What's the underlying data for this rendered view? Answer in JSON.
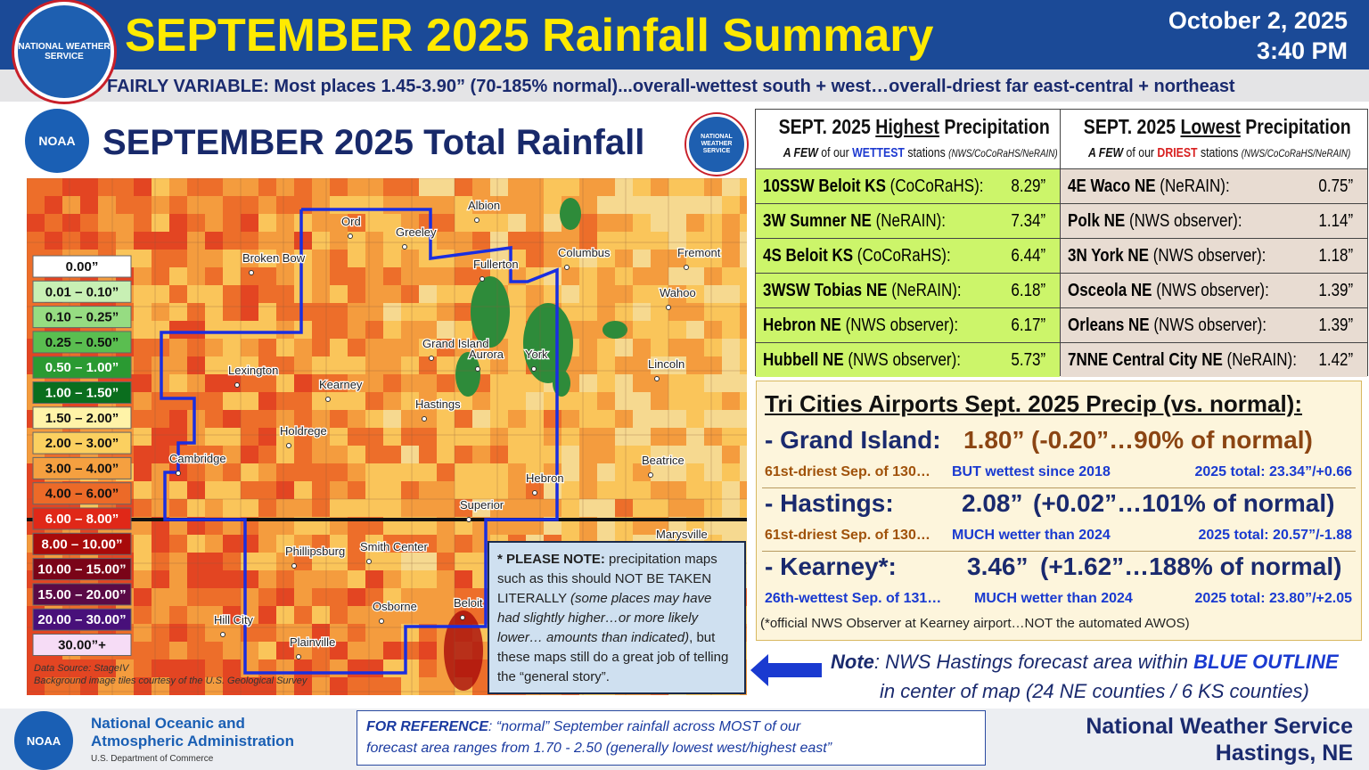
{
  "header": {
    "title": "SEPTEMBER 2025 Rainfall Summary",
    "date": "October 2, 2025",
    "time": "3:40 PM",
    "subtitle": "FAIRLY VARIABLE: Most places 1.45-3.90” (70-185% normal)...overall-wettest south + west…overall-driest far east-central + northeast"
  },
  "logos": {
    "nws": "NATIONAL WEATHER SERVICE",
    "noaa": "NOAA"
  },
  "map": {
    "title": "SEPTEMBER 2025 Total Rainfall",
    "legend": [
      {
        "label": "0.00”",
        "color": "#ffffff"
      },
      {
        "label": "0.01 – 0.10”",
        "color": "#c8f0b4"
      },
      {
        "label": "0.10 – 0.25”",
        "color": "#96dc82"
      },
      {
        "label": "0.25 – 0.50”",
        "color": "#5abe50"
      },
      {
        "label": "0.50 – 1.00”",
        "color": "#2a9a32"
      },
      {
        "label": "1.00 – 1.50”",
        "color": "#0a6e1e"
      },
      {
        "label": "1.50 – 2.00”",
        "color": "#fff3a8"
      },
      {
        "label": "2.00 – 3.00”",
        "color": "#fbd060"
      },
      {
        "label": "3.00 – 4.00”",
        "color": "#f5a040"
      },
      {
        "label": "4.00 – 6.00”",
        "color": "#ec6a28"
      },
      {
        "label": "6.00 – 8.00”",
        "color": "#e02818"
      },
      {
        "label": "8.00 – 10.00”",
        "color": "#a80a0a"
      },
      {
        "label": "10.00 – 15.00”",
        "color": "#7a0418"
      },
      {
        "label": "15.00 – 20.00”",
        "color": "#5a0a46"
      },
      {
        "label": "20.00 – 30.00”",
        "color": "#48107a"
      },
      {
        "label": "30.00”+",
        "color": "#f6dcf6"
      }
    ],
    "cities": [
      "Ord",
      "Greeley",
      "Albion",
      "Broken Bow",
      "Fullerton",
      "Columbus",
      "Fremont",
      "Wahoo",
      "Grand Island",
      "Aurora",
      "York",
      "Lexington",
      "Lincoln",
      "Kearney",
      "Hastings",
      "Holdrege",
      "Cambridge",
      "Beatrice",
      "Hebron",
      "Superior",
      "Marysville",
      "Phillipsburg",
      "Smith Center",
      "Osborne",
      "Beloit",
      "Hill City",
      "Plainville"
    ],
    "source": [
      "Data Source: StageIV",
      "Background image tiles courtesy of the U.S. Geological Survey"
    ]
  },
  "note_box": {
    "lead": "* PLEASE NOTE:",
    "text1": " precipitation maps such as this should NOT BE TAKEN LITERALLY ",
    "italic": "(some places may have had slightly higher…or more likely lower… amounts than indicated)",
    "text2": ", but these maps still do a great job of telling the “general story”."
  },
  "highest": {
    "title": [
      "SEPT. 2025 ",
      "Highest",
      " Precipitation"
    ],
    "subtitle": [
      "A FEW",
      " of our ",
      "WETTEST",
      " stations ",
      "(NWS/CoCoRaHS/NeRAIN)"
    ],
    "rows": [
      {
        "station": "10SSW Beloit KS",
        "source": "(CoCoRaHS):",
        "amount": "8.29”"
      },
      {
        "station": "3W Sumner NE",
        "source": "(NeRAIN):",
        "amount": "7.34”"
      },
      {
        "station": "4S Beloit KS",
        "source": "(CoCoRaHS):",
        "amount": "6.44”"
      },
      {
        "station": "3WSW Tobias NE",
        "source": "(NeRAIN):",
        "amount": "6.18”"
      },
      {
        "station": "Hebron NE",
        "source": "(NWS observer):",
        "amount": "6.17”"
      },
      {
        "station": "Hubbell NE",
        "source": "(NWS observer):",
        "amount": "5.73”"
      }
    ]
  },
  "lowest": {
    "title": [
      "SEPT. 2025 ",
      "Lowest",
      " Precipitation"
    ],
    "subtitle": [
      "A FEW",
      " of our ",
      "DRIEST",
      " stations ",
      "(NWS/CoCoRaHS/NeRAIN)"
    ],
    "rows": [
      {
        "station": "4E Waco NE",
        "source": "(NeRAIN):",
        "amount": "0.75”"
      },
      {
        "station": "Polk NE",
        "source": "(NWS observer):",
        "amount": "1.14”"
      },
      {
        "station": "3N York NE",
        "source": "(NWS observer):",
        "amount": "1.18”"
      },
      {
        "station": "Osceola NE",
        "source": "(NWS observer):",
        "amount": "1.39”"
      },
      {
        "station": "Orleans NE",
        "source": "(NWS observer):",
        "amount": "1.39”"
      },
      {
        "station": "7NNE Central City NE",
        "source": "(NeRAIN):",
        "amount": "1.42”"
      }
    ]
  },
  "airports": {
    "title": "Tri Cities Airports Sept. 2025 Precip (vs. normal):",
    "sites": [
      {
        "name": "- Grand Island:",
        "amount": "1.80”",
        "departure": "(-0.20”…90% of normal)",
        "rank": "61st-driest Sep. of 130…",
        "comparison": "BUT wettest since 2018",
        "year_total": "2025 total: 23.34”/+0.66"
      },
      {
        "name": "- Hastings:",
        "amount": "2.08”",
        "departure": "(+0.02”…101% of normal)",
        "rank": "61st-driest Sep. of 130…",
        "comparison": "MUCH wetter than 2024",
        "year_total": "2025 total: 20.57”/-1.88"
      },
      {
        "name": "- Kearney*:",
        "amount": "3.46”",
        "departure": "(+1.62”…188% of normal)",
        "rank": "26th-wettest Sep. of 131…",
        "comparison": "MUCH wetter than 2024",
        "year_total": "2025 total: 23.80”/+2.05"
      }
    ],
    "footnote": "(*official NWS Observer at Kearney airport…NOT the automated AWOS)"
  },
  "outline_note": {
    "lead": "Note",
    "text": ": NWS Hastings forecast area within ",
    "emph": "BLUE OUTLINE",
    "line2": "in center of map (24 NE counties / 6 KS counties)"
  },
  "footer": {
    "noaa_line1": "National Oceanic and",
    "noaa_line2": "Atmospheric Administration",
    "noaa_dept": "U.S. Department of Commerce",
    "reference_lead": "FOR REFERENCE",
    "reference_line1": ": “normal” September rainfall across MOST of our",
    "reference_line2": "forecast area ranges from 1.70 - 2.50 (generally lowest west/highest east”",
    "office1": "National Weather Service",
    "office2": "Hastings, NE"
  }
}
